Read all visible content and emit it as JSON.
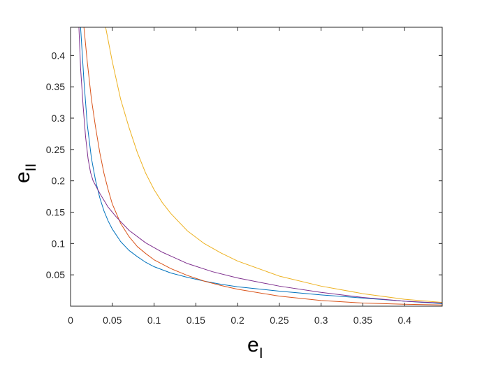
{
  "chart_data": {
    "type": "line",
    "title": "",
    "xlabel": {
      "main": "e",
      "sub": "I"
    },
    "ylabel": {
      "main": "e",
      "sub": "II"
    },
    "xlim": [
      0,
      0.445
    ],
    "ylim": [
      0,
      0.445
    ],
    "x_ticks": [
      0,
      0.05,
      0.1,
      0.15,
      0.2,
      0.25,
      0.3,
      0.35,
      0.4
    ],
    "x_tick_labels": [
      "0",
      "0.05",
      "0.1",
      "0.15",
      "0.2",
      "0.25",
      "0.3",
      "0.35",
      "0.4"
    ],
    "y_ticks": [
      0.05,
      0.1,
      0.15,
      0.2,
      0.25,
      0.3,
      0.35,
      0.4
    ],
    "y_tick_labels": [
      "0.05",
      "0.1",
      "0.15",
      "0.2",
      "0.25",
      "0.3",
      "0.35",
      "0.4"
    ],
    "grid": false,
    "legend": "none",
    "series": [
      {
        "color": "#0072BD",
        "x": [
          0.012,
          0.016,
          0.02,
          0.025,
          0.03,
          0.035,
          0.04,
          0.045,
          0.05,
          0.06,
          0.07,
          0.08,
          0.09,
          0.1,
          0.12,
          0.14,
          0.16,
          0.18,
          0.2,
          0.25,
          0.3,
          0.35,
          0.4,
          0.445
        ],
        "y": [
          0.445,
          0.36,
          0.29,
          0.236,
          0.2,
          0.173,
          0.152,
          0.136,
          0.123,
          0.103,
          0.089,
          0.079,
          0.07,
          0.063,
          0.053,
          0.046,
          0.04,
          0.035,
          0.031,
          0.024,
          0.018,
          0.013,
          0.008,
          0.004
        ]
      },
      {
        "color": "#D95319",
        "x": [
          0.016,
          0.02,
          0.025,
          0.03,
          0.035,
          0.04,
          0.045,
          0.05,
          0.06,
          0.07,
          0.08,
          0.09,
          0.1,
          0.12,
          0.14,
          0.16,
          0.18,
          0.2,
          0.25,
          0.3,
          0.35,
          0.4,
          0.445
        ],
        "y": [
          0.445,
          0.39,
          0.33,
          0.285,
          0.245,
          0.212,
          0.186,
          0.163,
          0.132,
          0.111,
          0.095,
          0.084,
          0.074,
          0.06,
          0.049,
          0.04,
          0.033,
          0.027,
          0.016,
          0.009,
          0.005,
          0.003,
          0.002
        ]
      },
      {
        "color": "#EDB120",
        "x": [
          0.042,
          0.05,
          0.06,
          0.07,
          0.08,
          0.09,
          0.1,
          0.11,
          0.12,
          0.14,
          0.16,
          0.18,
          0.2,
          0.25,
          0.3,
          0.35,
          0.4,
          0.445
        ],
        "y": [
          0.445,
          0.39,
          0.33,
          0.285,
          0.245,
          0.212,
          0.186,
          0.165,
          0.148,
          0.12,
          0.1,
          0.085,
          0.072,
          0.048,
          0.032,
          0.02,
          0.011,
          0.006
        ]
      },
      {
        "color": "#7E2F8E",
        "x": [
          0.01,
          0.012,
          0.015,
          0.018,
          0.021,
          0.024,
          0.027,
          0.035,
          0.045,
          0.055,
          0.07,
          0.09,
          0.11,
          0.14,
          0.17,
          0.2,
          0.25,
          0.3,
          0.35,
          0.4,
          0.445
        ],
        "y": [
          0.445,
          0.38,
          0.32,
          0.27,
          0.235,
          0.213,
          0.2,
          0.18,
          0.158,
          0.142,
          0.121,
          0.101,
          0.086,
          0.068,
          0.055,
          0.045,
          0.032,
          0.022,
          0.014,
          0.008,
          0.005
        ]
      }
    ]
  }
}
